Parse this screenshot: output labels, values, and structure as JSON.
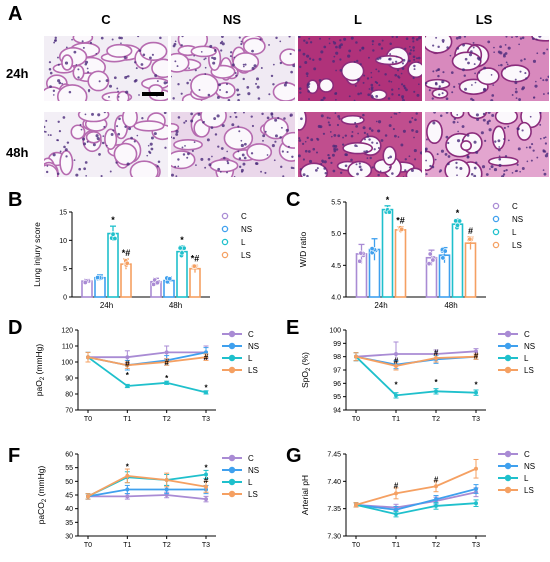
{
  "panel_labels": {
    "a": "A",
    "b": "B",
    "c": "C",
    "d": "D",
    "e": "E",
    "f": "F",
    "g": "G"
  },
  "histology": {
    "columns": [
      "C",
      "NS",
      "L",
      "LS"
    ],
    "rows": [
      "24h",
      "48h"
    ]
  },
  "colors": {
    "C": "#a98bd4",
    "NS": "#3fa0ee",
    "L": "#1fc0cc",
    "LS": "#f5a062"
  },
  "chart_data": [
    {
      "id": "B",
      "type": "bar",
      "ylabel": "Lung injury score",
      "ylim": [
        0,
        15
      ],
      "yticks": [
        0,
        5,
        10,
        15
      ],
      "categories": [
        "24h",
        "48h"
      ],
      "legend": [
        "C",
        "NS",
        "L",
        "LS"
      ],
      "series": [
        {
          "name": "C",
          "values": [
            2.8,
            2.7
          ],
          "errors": [
            0.3,
            0.6
          ]
        },
        {
          "name": "NS",
          "values": [
            3.4,
            2.9
          ],
          "errors": [
            0.5,
            0.6
          ]
        },
        {
          "name": "L",
          "values": [
            11.2,
            8.0
          ],
          "errors": [
            1.3,
            1.0
          ]
        },
        {
          "name": "LS",
          "values": [
            5.8,
            5.0
          ],
          "errors": [
            0.9,
            0.7
          ]
        }
      ],
      "annotations": [
        {
          "category": 0,
          "series": 2,
          "text": "*"
        },
        {
          "category": 0,
          "series": 3,
          "text": "*#"
        },
        {
          "category": 1,
          "series": 2,
          "text": "*"
        },
        {
          "category": 1,
          "series": 3,
          "text": "*#"
        }
      ]
    },
    {
      "id": "C",
      "type": "bar",
      "ylabel": "W/D ratio",
      "ylim": [
        4.0,
        5.5
      ],
      "yticks": [
        "4.0",
        "4.5",
        "5.0",
        "5.5"
      ],
      "categories": [
        "24h",
        "48h"
      ],
      "legend": [
        "C",
        "NS",
        "L",
        "LS"
      ],
      "series": [
        {
          "name": "C",
          "values": [
            4.68,
            4.62
          ],
          "errors": [
            0.15,
            0.12
          ]
        },
        {
          "name": "NS",
          "values": [
            4.75,
            4.66
          ],
          "errors": [
            0.17,
            0.12
          ]
        },
        {
          "name": "L",
          "values": [
            5.38,
            5.15
          ],
          "errors": [
            0.06,
            0.08
          ]
        },
        {
          "name": "LS",
          "values": [
            5.06,
            4.85
          ],
          "errors": [
            0.05,
            0.1
          ]
        }
      ],
      "annotations": [
        {
          "category": 0,
          "series": 2,
          "text": "*"
        },
        {
          "category": 0,
          "series": 3,
          "text": "*#"
        },
        {
          "category": 1,
          "series": 2,
          "text": "*"
        },
        {
          "category": 1,
          "series": 3,
          "text": "#"
        }
      ]
    },
    {
      "id": "D",
      "type": "line",
      "ylabel": "paO2 (mmHg)",
      "ylabel_main": "paO",
      "ylabel_sub": "2",
      "ylabel_tail": " (mmHg)",
      "ylim": [
        70,
        120
      ],
      "yticks": [
        70,
        80,
        90,
        100,
        110,
        120
      ],
      "categories": [
        "T0",
        "T1",
        "T2",
        "T3"
      ],
      "legend": [
        "C",
        "NS",
        "L",
        "LS"
      ],
      "series": [
        {
          "name": "C",
          "values": [
            103,
            103,
            106,
            106
          ],
          "errors": [
            3,
            4,
            4,
            4
          ]
        },
        {
          "name": "NS",
          "values": [
            103,
            98,
            101,
            106
          ],
          "errors": [
            3,
            3,
            3,
            3
          ]
        },
        {
          "name": "L",
          "values": [
            103,
            85,
            87,
            81
          ],
          "errors": [
            3,
            1,
            1,
            1
          ]
        },
        {
          "name": "LS",
          "values": [
            103,
            98,
            100,
            103
          ],
          "errors": [
            3,
            2,
            2,
            2
          ]
        }
      ],
      "annotations": [
        {
          "category": 1,
          "value": 92,
          "text": "*"
        },
        {
          "category": 1,
          "value": 99,
          "text": "#"
        },
        {
          "category": 2,
          "value": 90,
          "text": "*"
        },
        {
          "category": 2,
          "value": 100,
          "text": "#"
        },
        {
          "category": 3,
          "value": 84,
          "text": "*"
        },
        {
          "category": 3,
          "value": 103,
          "text": "#"
        }
      ]
    },
    {
      "id": "E",
      "type": "line",
      "ylabel": "SpO2 (%)",
      "ylabel_main": "SpO",
      "ylabel_sub": "2",
      "ylabel_tail": " (%)",
      "ylim": [
        94,
        100
      ],
      "yticks": [
        94,
        95,
        96,
        97,
        98,
        99,
        100
      ],
      "categories": [
        "T0",
        "T1",
        "T2",
        "T3"
      ],
      "legend": [
        "C",
        "NS",
        "L",
        "LS"
      ],
      "series": [
        {
          "name": "C",
          "values": [
            98,
            98.2,
            98.2,
            98.4
          ],
          "errors": [
            0.3,
            0.9,
            0.3,
            0.2
          ]
        },
        {
          "name": "NS",
          "values": [
            98,
            97.4,
            97.8,
            98
          ],
          "errors": [
            0.3,
            0.3,
            0.3,
            0.2
          ]
        },
        {
          "name": "L",
          "values": [
            98,
            95.1,
            95.4,
            95.3
          ],
          "errors": [
            0.3,
            0.2,
            0.2,
            0.2
          ]
        },
        {
          "name": "LS",
          "values": [
            98,
            97.3,
            97.9,
            98
          ],
          "errors": [
            0.3,
            0.3,
            0.3,
            0.2
          ]
        }
      ],
      "annotations": [
        {
          "category": 1,
          "value": 95.9,
          "text": "*"
        },
        {
          "category": 1,
          "value": 97.7,
          "text": "#"
        },
        {
          "category": 2,
          "value": 96.1,
          "text": "*"
        },
        {
          "category": 2,
          "value": 98.3,
          "text": "#"
        },
        {
          "category": 3,
          "value": 95.9,
          "text": "*"
        },
        {
          "category": 3,
          "value": 98.1,
          "text": "#"
        }
      ]
    },
    {
      "id": "F",
      "type": "line",
      "ylabel": "paCO2 (mmHg)",
      "ylabel_main": "paCO",
      "ylabel_sub": "2",
      "ylabel_tail": " (mmHg)",
      "ylim": [
        30,
        60
      ],
      "yticks": [
        30,
        35,
        40,
        45,
        50,
        55,
        60
      ],
      "categories": [
        "T0",
        "T1",
        "T2",
        "T3"
      ],
      "legend": [
        "C",
        "NS",
        "L",
        "LS"
      ],
      "series": [
        {
          "name": "C",
          "values": [
            44.5,
            44.5,
            45,
            43.5
          ],
          "errors": [
            1,
            1,
            1,
            1
          ]
        },
        {
          "name": "NS",
          "values": [
            44.5,
            47,
            47,
            47
          ],
          "errors": [
            1,
            1.5,
            1.5,
            1.5
          ]
        },
        {
          "name": "L",
          "values": [
            44.5,
            51.5,
            50.5,
            52.5
          ],
          "errors": [
            1,
            2,
            2,
            1.5
          ]
        },
        {
          "name": "LS",
          "values": [
            44.5,
            52,
            50.5,
            48
          ],
          "errors": [
            1,
            2.5,
            2.5,
            2
          ]
        }
      ],
      "annotations": [
        {
          "category": 1,
          "value": 55.5,
          "text": "*"
        },
        {
          "category": 3,
          "value": 55,
          "text": "*"
        },
        {
          "category": 3,
          "value": 50.5,
          "text": "#"
        }
      ]
    },
    {
      "id": "G",
      "type": "line",
      "ylabel": "Arterial pH",
      "ylim": [
        7.3,
        7.45
      ],
      "yticks": [
        "7.30",
        "7.35",
        "7.40",
        "7.45"
      ],
      "categories": [
        "T0",
        "T1",
        "T2",
        "T3"
      ],
      "legend": [
        "C",
        "NS",
        "L",
        "LS"
      ],
      "series": [
        {
          "name": "C",
          "values": [
            7.357,
            7.352,
            7.364,
            7.38
          ],
          "errors": [
            0.004,
            0.006,
            0.007,
            0.008
          ]
        },
        {
          "name": "NS",
          "values": [
            7.357,
            7.348,
            7.367,
            7.386
          ],
          "errors": [
            0.004,
            0.006,
            0.007,
            0.008
          ]
        },
        {
          "name": "L",
          "values": [
            7.357,
            7.34,
            7.355,
            7.36
          ],
          "errors": [
            0.004,
            0.005,
            0.006,
            0.006
          ]
        },
        {
          "name": "LS",
          "values": [
            7.357,
            7.378,
            7.391,
            7.423
          ],
          "errors": [
            0.004,
            0.01,
            0.01,
            0.017
          ]
        }
      ],
      "annotations": [
        {
          "category": 1,
          "value": 7.392,
          "text": "#"
        },
        {
          "category": 2,
          "value": 7.403,
          "text": "#"
        }
      ]
    }
  ]
}
